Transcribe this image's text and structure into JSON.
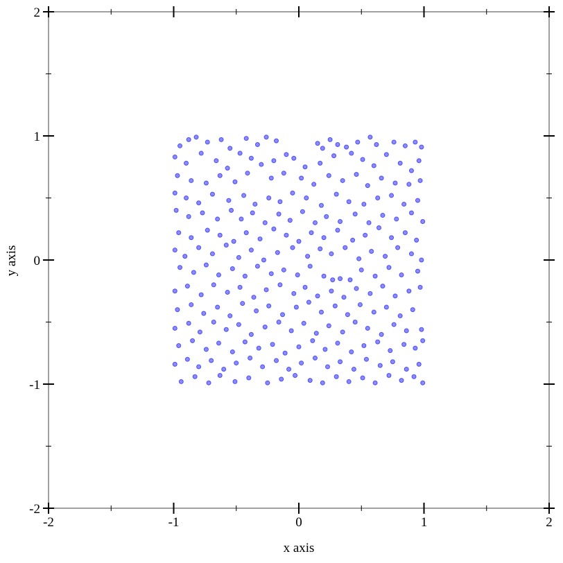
{
  "chart_data": {
    "type": "scatter",
    "xlabel": "x axis",
    "ylabel": "y axis",
    "xlim": [
      -2,
      2
    ],
    "ylim": [
      -2,
      2
    ],
    "xticks": [
      "-2",
      "-1",
      "0",
      "1",
      "2"
    ],
    "yticks": [
      "-2",
      "-1",
      "0",
      "1",
      "2"
    ],
    "grid": false,
    "point_color": "#0000ff",
    "points": [
      [
        -0.95,
        0.92
      ],
      [
        -0.88,
        0.97
      ],
      [
        -0.82,
        0.99
      ],
      [
        -0.73,
        0.95
      ],
      [
        -0.62,
        0.97
      ],
      [
        -0.55,
        0.9
      ],
      [
        -0.42,
        0.98
      ],
      [
        -0.33,
        0.93
      ],
      [
        -0.26,
        0.99
      ],
      [
        -0.18,
        0.96
      ],
      [
        -0.1,
        0.85
      ],
      [
        0.15,
        0.94
      ],
      [
        0.19,
        0.9
      ],
      [
        0.25,
        0.97
      ],
      [
        0.31,
        0.93
      ],
      [
        0.38,
        0.91
      ],
      [
        0.47,
        0.95
      ],
      [
        0.57,
        0.99
      ],
      [
        0.62,
        0.93
      ],
      [
        0.76,
        0.95
      ],
      [
        0.85,
        0.92
      ],
      [
        0.93,
        0.95
      ],
      [
        0.98,
        0.91
      ],
      [
        -0.99,
        0.83
      ],
      [
        -0.9,
        0.78
      ],
      [
        -0.78,
        0.86
      ],
      [
        -0.66,
        0.8
      ],
      [
        -0.57,
        0.74
      ],
      [
        -0.47,
        0.86
      ],
      [
        -0.38,
        0.82
      ],
      [
        -0.3,
        0.77
      ],
      [
        -0.2,
        0.8
      ],
      [
        -0.04,
        0.82
      ],
      [
        0.05,
        0.75
      ],
      [
        0.17,
        0.78
      ],
      [
        0.28,
        0.84
      ],
      [
        0.42,
        0.86
      ],
      [
        0.51,
        0.81
      ],
      [
        0.6,
        0.76
      ],
      [
        0.7,
        0.85
      ],
      [
        0.81,
        0.78
      ],
      [
        0.9,
        0.72
      ],
      [
        0.96,
        0.8
      ],
      [
        -0.97,
        0.68
      ],
      [
        -0.86,
        0.64
      ],
      [
        -0.74,
        0.62
      ],
      [
        -0.63,
        0.68
      ],
      [
        -0.51,
        0.63
      ],
      [
        -0.41,
        0.7
      ],
      [
        -0.22,
        0.66
      ],
      [
        -0.12,
        0.7
      ],
      [
        0.02,
        0.66
      ],
      [
        0.12,
        0.61
      ],
      [
        0.24,
        0.68
      ],
      [
        0.35,
        0.64
      ],
      [
        0.46,
        0.69
      ],
      [
        0.55,
        0.6
      ],
      [
        0.66,
        0.66
      ],
      [
        0.77,
        0.62
      ],
      [
        0.88,
        0.61
      ],
      [
        0.97,
        0.64
      ],
      [
        -0.99,
        0.54
      ],
      [
        -0.9,
        0.5
      ],
      [
        -0.8,
        0.46
      ],
      [
        -0.69,
        0.53
      ],
      [
        -0.56,
        0.48
      ],
      [
        -0.44,
        0.52
      ],
      [
        -0.35,
        0.45
      ],
      [
        -0.24,
        0.5
      ],
      [
        -0.15,
        0.47
      ],
      [
        -0.05,
        0.54
      ],
      [
        0.06,
        0.5
      ],
      [
        0.18,
        0.44
      ],
      [
        0.3,
        0.53
      ],
      [
        0.4,
        0.47
      ],
      [
        0.52,
        0.45
      ],
      [
        0.63,
        0.5
      ],
      [
        0.74,
        0.52
      ],
      [
        0.84,
        0.45
      ],
      [
        0.95,
        0.48
      ],
      [
        -0.98,
        0.4
      ],
      [
        -0.88,
        0.35
      ],
      [
        -0.77,
        0.38
      ],
      [
        -0.65,
        0.33
      ],
      [
        -0.54,
        0.4
      ],
      [
        -0.46,
        0.33
      ],
      [
        -0.37,
        0.38
      ],
      [
        -0.27,
        0.3
      ],
      [
        -0.16,
        0.37
      ],
      [
        -0.07,
        0.32
      ],
      [
        0.03,
        0.39
      ],
      [
        0.13,
        0.3
      ],
      [
        0.22,
        0.35
      ],
      [
        0.33,
        0.31
      ],
      [
        0.45,
        0.37
      ],
      [
        0.56,
        0.3
      ],
      [
        0.67,
        0.36
      ],
      [
        0.78,
        0.33
      ],
      [
        0.9,
        0.38
      ],
      [
        0.99,
        0.31
      ],
      [
        -0.96,
        0.22
      ],
      [
        -0.86,
        0.18
      ],
      [
        -0.73,
        0.24
      ],
      [
        -0.63,
        0.2
      ],
      [
        -0.52,
        0.15
      ],
      [
        -0.42,
        0.22
      ],
      [
        -0.31,
        0.17
      ],
      [
        -0.2,
        0.25
      ],
      [
        -0.1,
        0.2
      ],
      [
        0.0,
        0.15
      ],
      [
        0.1,
        0.22
      ],
      [
        0.2,
        0.18
      ],
      [
        0.31,
        0.24
      ],
      [
        0.43,
        0.16
      ],
      [
        0.53,
        0.2
      ],
      [
        0.64,
        0.26
      ],
      [
        0.74,
        0.18
      ],
      [
        0.85,
        0.22
      ],
      [
        0.94,
        0.16
      ],
      [
        -0.99,
        0.08
      ],
      [
        -0.91,
        0.03
      ],
      [
        -0.8,
        0.1
      ],
      [
        -0.69,
        0.05
      ],
      [
        -0.58,
        0.12
      ],
      [
        -0.48,
        0.02
      ],
      [
        -0.38,
        0.08
      ],
      [
        -0.28,
        0.0
      ],
      [
        -0.17,
        0.06
      ],
      [
        -0.05,
        0.1
      ],
      [
        0.07,
        0.03
      ],
      [
        0.17,
        0.09
      ],
      [
        0.26,
        0.05
      ],
      [
        0.37,
        0.1
      ],
      [
        0.48,
        0.01
      ],
      [
        0.58,
        0.07
      ],
      [
        0.69,
        0.03
      ],
      [
        0.79,
        0.1
      ],
      [
        0.9,
        0.05
      ],
      [
        0.98,
        0.0
      ],
      [
        -0.95,
        -0.06
      ],
      [
        -0.84,
        -0.1
      ],
      [
        -0.74,
        -0.04
      ],
      [
        -0.64,
        -0.12
      ],
      [
        -0.53,
        -0.07
      ],
      [
        -0.43,
        -0.13
      ],
      [
        -0.33,
        -0.05
      ],
      [
        -0.22,
        -0.11
      ],
      [
        -0.12,
        -0.08
      ],
      [
        -0.01,
        -0.12
      ],
      [
        0.09,
        -0.05
      ],
      [
        0.2,
        -0.13
      ],
      [
        0.27,
        -0.16
      ],
      [
        0.33,
        -0.15
      ],
      [
        0.41,
        -0.16
      ],
      [
        0.5,
        -0.08
      ],
      [
        0.61,
        -0.13
      ],
      [
        0.72,
        -0.06
      ],
      [
        0.82,
        -0.12
      ],
      [
        0.95,
        -0.09
      ],
      [
        -0.99,
        -0.25
      ],
      [
        -0.89,
        -0.21
      ],
      [
        -0.78,
        -0.28
      ],
      [
        -0.68,
        -0.2
      ],
      [
        -0.57,
        -0.26
      ],
      [
        -0.47,
        -0.22
      ],
      [
        -0.36,
        -0.3
      ],
      [
        -0.26,
        -0.24
      ],
      [
        -0.15,
        -0.2
      ],
      [
        -0.04,
        -0.27
      ],
      [
        0.05,
        -0.22
      ],
      [
        0.15,
        -0.29
      ],
      [
        0.26,
        -0.25
      ],
      [
        0.36,
        -0.3
      ],
      [
        0.46,
        -0.23
      ],
      [
        0.57,
        -0.27
      ],
      [
        0.67,
        -0.21
      ],
      [
        0.77,
        -0.29
      ],
      [
        0.88,
        -0.25
      ],
      [
        0.97,
        -0.22
      ],
      [
        -0.97,
        -0.4
      ],
      [
        -0.86,
        -0.36
      ],
      [
        -0.76,
        -0.43
      ],
      [
        -0.65,
        -0.38
      ],
      [
        -0.55,
        -0.45
      ],
      [
        -0.45,
        -0.35
      ],
      [
        -0.34,
        -0.41
      ],
      [
        -0.24,
        -0.37
      ],
      [
        -0.13,
        -0.44
      ],
      [
        -0.02,
        -0.38
      ],
      [
        0.08,
        -0.34
      ],
      [
        0.18,
        -0.42
      ],
      [
        0.29,
        -0.37
      ],
      [
        0.39,
        -0.44
      ],
      [
        0.49,
        -0.36
      ],
      [
        0.6,
        -0.42
      ],
      [
        0.7,
        -0.38
      ],
      [
        0.81,
        -0.45
      ],
      [
        0.91,
        -0.4
      ],
      [
        -0.99,
        -0.55
      ],
      [
        -0.88,
        -0.51
      ],
      [
        -0.79,
        -0.58
      ],
      [
        -0.68,
        -0.5
      ],
      [
        -0.58,
        -0.56
      ],
      [
        -0.48,
        -0.52
      ],
      [
        -0.38,
        -0.6
      ],
      [
        -0.27,
        -0.54
      ],
      [
        -0.16,
        -0.5
      ],
      [
        -0.06,
        -0.57
      ],
      [
        0.04,
        -0.51
      ],
      [
        0.14,
        -0.59
      ],
      [
        0.24,
        -0.53
      ],
      [
        0.35,
        -0.58
      ],
      [
        0.45,
        -0.5
      ],
      [
        0.55,
        -0.55
      ],
      [
        0.66,
        -0.6
      ],
      [
        0.76,
        -0.52
      ],
      [
        0.86,
        -0.57
      ],
      [
        0.98,
        -0.56
      ],
      [
        -0.96,
        -0.69
      ],
      [
        -0.85,
        -0.65
      ],
      [
        -0.74,
        -0.72
      ],
      [
        -0.64,
        -0.67
      ],
      [
        -0.53,
        -0.74
      ],
      [
        -0.43,
        -0.66
      ],
      [
        -0.32,
        -0.71
      ],
      [
        -0.21,
        -0.68
      ],
      [
        -0.11,
        -0.75
      ],
      [
        0.0,
        -0.7
      ],
      [
        0.11,
        -0.65
      ],
      [
        0.21,
        -0.72
      ],
      [
        0.31,
        -0.67
      ],
      [
        0.42,
        -0.74
      ],
      [
        0.52,
        -0.69
      ],
      [
        0.63,
        -0.66
      ],
      [
        0.73,
        -0.73
      ],
      [
        0.84,
        -0.68
      ],
      [
        0.93,
        -0.71
      ],
      [
        0.99,
        -0.65
      ],
      [
        -0.99,
        -0.84
      ],
      [
        -0.89,
        -0.8
      ],
      [
        -0.8,
        -0.86
      ],
      [
        -0.7,
        -0.81
      ],
      [
        -0.6,
        -0.88
      ],
      [
        -0.5,
        -0.83
      ],
      [
        -0.39,
        -0.79
      ],
      [
        -0.29,
        -0.86
      ],
      [
        -0.18,
        -0.81
      ],
      [
        -0.08,
        -0.88
      ],
      [
        0.02,
        -0.83
      ],
      [
        0.13,
        -0.79
      ],
      [
        0.23,
        -0.86
      ],
      [
        0.33,
        -0.82
      ],
      [
        0.44,
        -0.88
      ],
      [
        0.54,
        -0.8
      ],
      [
        0.65,
        -0.85
      ],
      [
        0.75,
        -0.82
      ],
      [
        0.86,
        -0.88
      ],
      [
        0.96,
        -0.84
      ],
      [
        -0.94,
        -0.98
      ],
      [
        -0.83,
        -0.94
      ],
      [
        -0.72,
        -0.99
      ],
      [
        -0.63,
        -0.93
      ],
      [
        -0.51,
        -0.98
      ],
      [
        -0.4,
        -0.95
      ],
      [
        -0.25,
        -0.99
      ],
      [
        -0.14,
        -0.96
      ],
      [
        -0.03,
        -0.93
      ],
      [
        0.09,
        -0.97
      ],
      [
        0.19,
        -0.99
      ],
      [
        0.3,
        -0.94
      ],
      [
        0.4,
        -0.98
      ],
      [
        0.51,
        -0.95
      ],
      [
        0.61,
        -0.99
      ],
      [
        0.72,
        -0.93
      ],
      [
        0.82,
        -0.97
      ],
      [
        0.92,
        -0.94
      ],
      [
        0.99,
        -0.99
      ]
    ]
  }
}
